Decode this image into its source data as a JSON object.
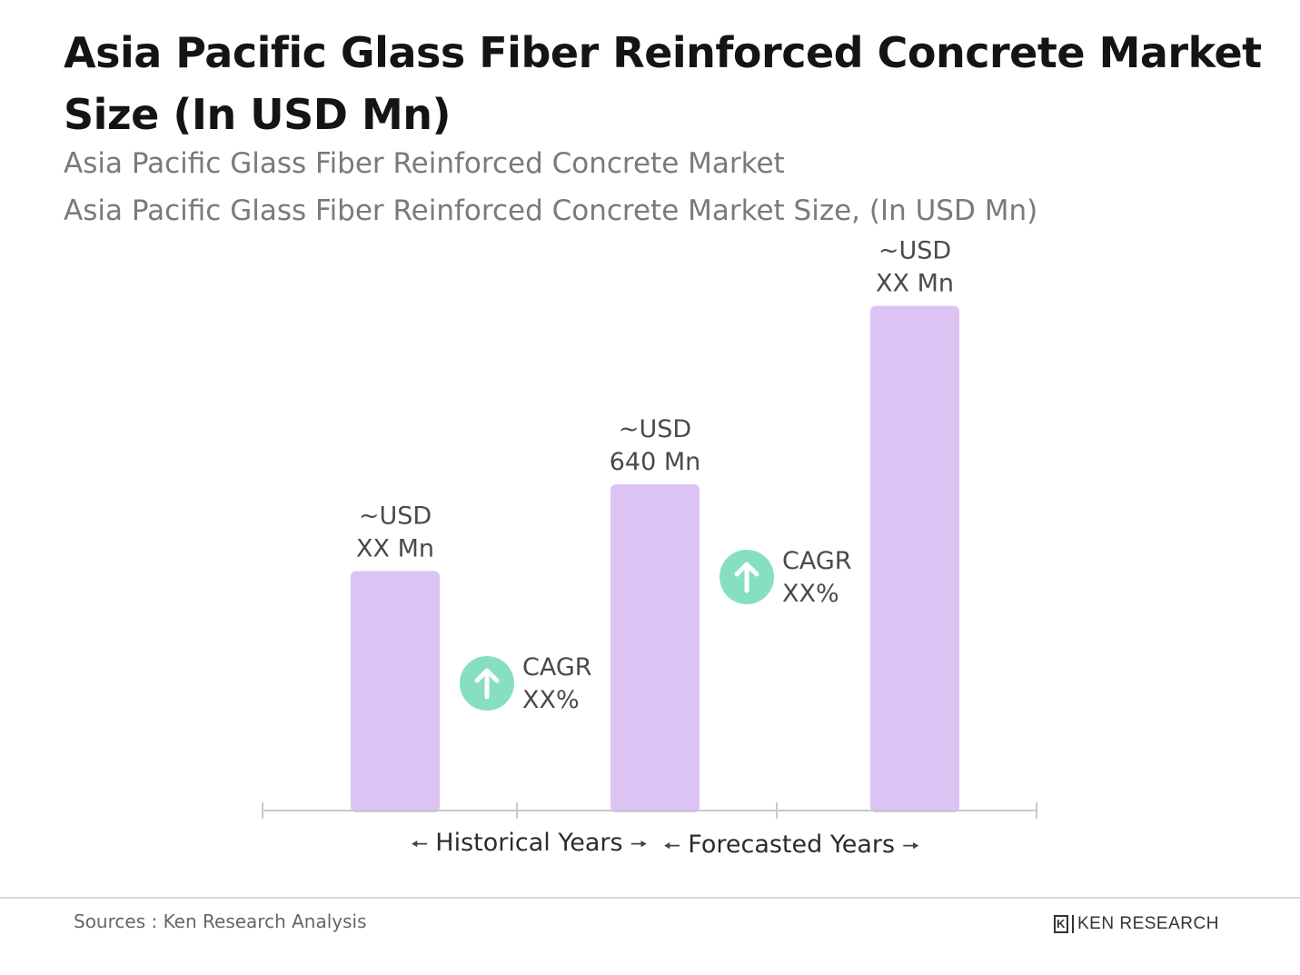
{
  "title": "Asia Pacific Glass Fiber Reinforced Concrete Market Size (In USD Mn)",
  "subtitle_1": "Asia Pacific Glass Fiber Reinforced Concrete Market",
  "subtitle_2": "Asia Pacific Glass Fiber Reinforced Concrete Market Size, (In USD Mn)",
  "legend": {
    "historical": "Historical Years",
    "forecasted": "Forecasted Years"
  },
  "footer": {
    "source": "Sources : Ken Research Analysis",
    "logo_text": "KEN RESEARCH",
    "logo_mark": "K"
  },
  "colors": {
    "bar": "#dcc3f4",
    "cagr_icon": "#86dfc3",
    "axis": "#c8c8c8",
    "label": "#4a4a4a"
  },
  "chart_data": {
    "type": "bar",
    "categories": [
      "",
      "",
      ""
    ],
    "values": [
      470,
      640,
      990
    ],
    "value_labels": [
      [
        "~USD",
        "XX Mn"
      ],
      [
        "~USD",
        "640 Mn"
      ],
      [
        "~USD",
        "XX Mn"
      ]
    ],
    "annotations": [
      {
        "between": [
          0,
          1
        ],
        "lines": [
          "CAGR",
          "XX%"
        ],
        "icon": "arrow-up-icon"
      },
      {
        "between": [
          1,
          2
        ],
        "lines": [
          "CAGR",
          "XX%"
        ],
        "icon": "arrow-up-icon"
      }
    ],
    "ylim": [
      0,
      1000
    ],
    "grid": false,
    "title": "Asia Pacific Glass Fiber Reinforced Concrete Market Size (In USD Mn)",
    "xlabel": "",
    "ylabel": ""
  }
}
